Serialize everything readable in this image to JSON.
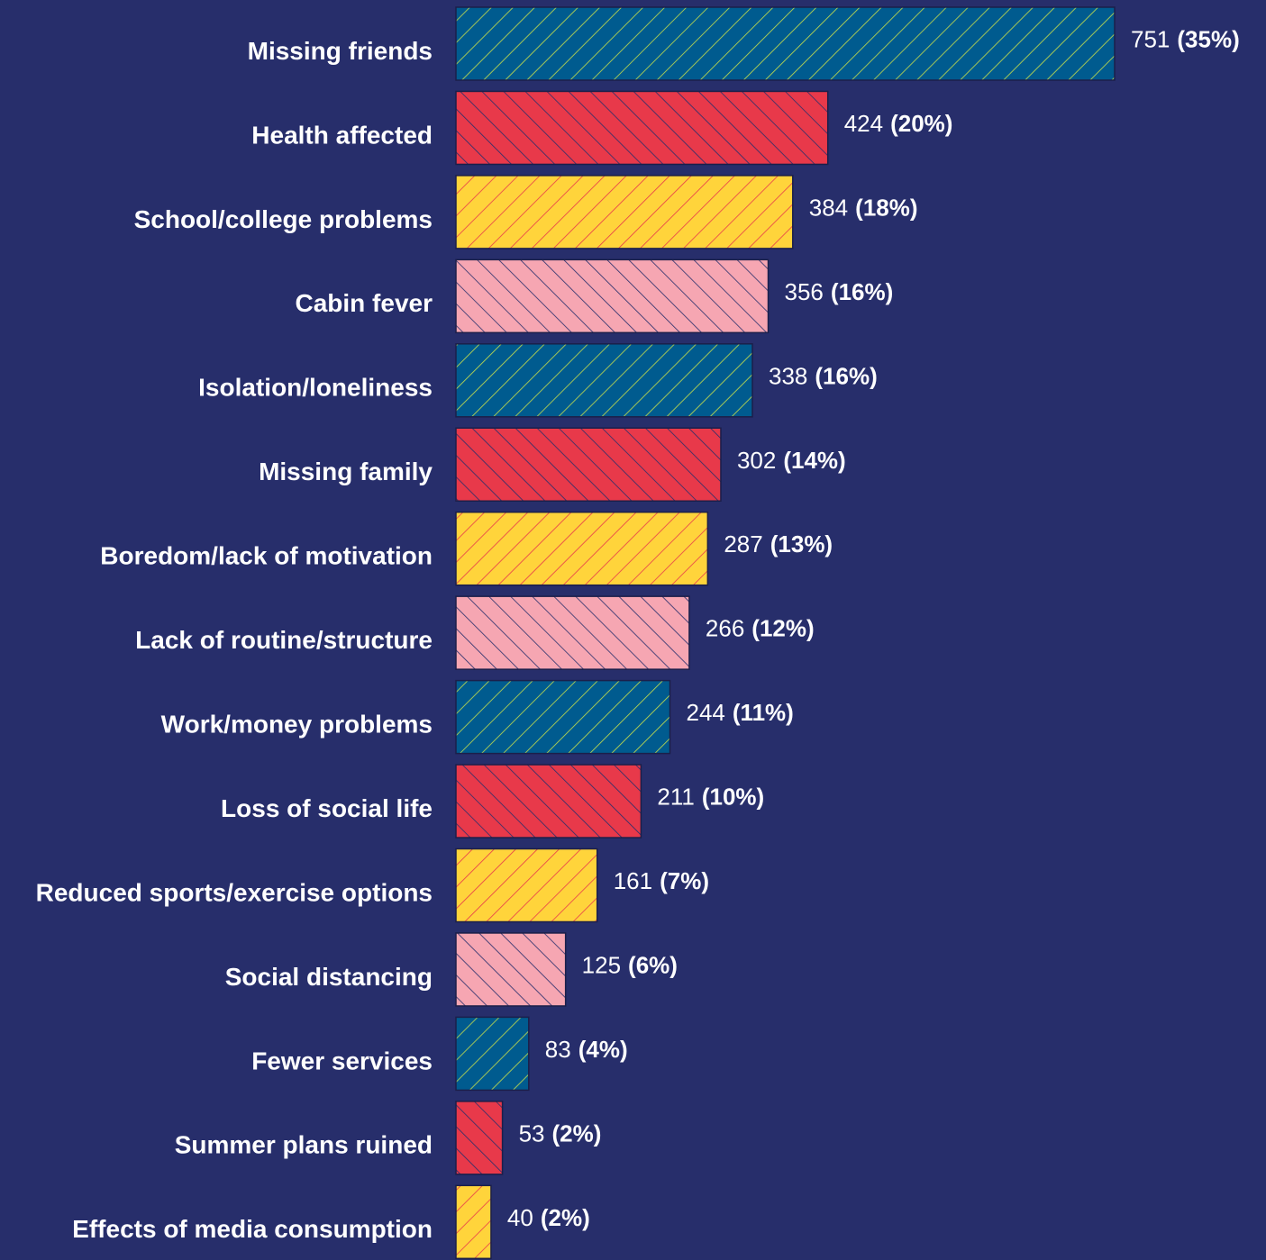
{
  "chart_data": {
    "type": "bar",
    "orientation": "horizontal",
    "categories": [
      "Missing friends",
      "Health affected",
      "School/college problems",
      "Cabin fever",
      "Isolation/loneliness",
      "Missing family",
      "Boredom/lack of motivation",
      "Lack of routine/structure",
      "Work/money problems",
      "Loss of social life",
      "Reduced sports/exercise options",
      "Social distancing",
      "Fewer services",
      "Summer plans ruined",
      "Effects of media consumption"
    ],
    "values": [
      751,
      424,
      384,
      356,
      338,
      302,
      287,
      266,
      244,
      211,
      161,
      125,
      83,
      53,
      40
    ],
    "share_labels": [
      "(35%)",
      "(20%)",
      "(18%)",
      "(16%)",
      "(16%)",
      "(14%)",
      "(13%)",
      "(12%)",
      "(11%)",
      "(10%)",
      "(7%)",
      "(6%)",
      "(4%)",
      "(2%)",
      "(2%)"
    ],
    "colors": [
      "#005b8f",
      "#e8394a",
      "#ffd43b",
      "#f6a6b2"
    ],
    "hatch_colors": [
      "#c9e04a",
      "#272e6b",
      "#e8394a",
      "#272e6b"
    ]
  }
}
